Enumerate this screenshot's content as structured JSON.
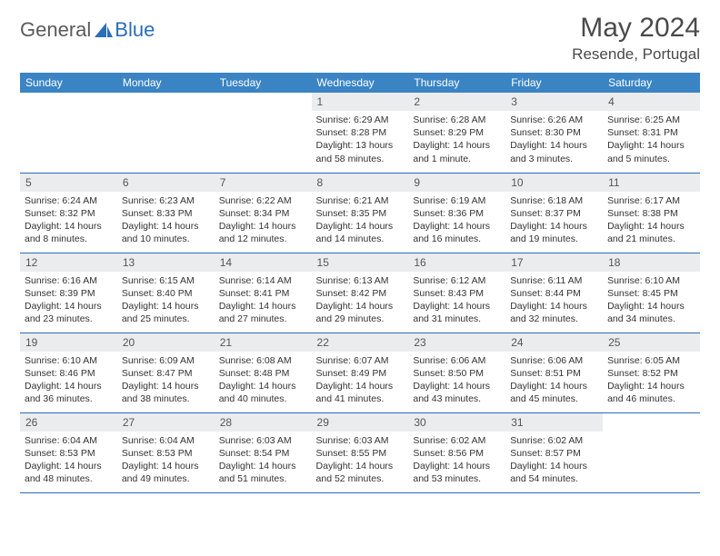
{
  "brand": {
    "general": "General",
    "blue": "Blue"
  },
  "title": "May 2024",
  "location": "Resende, Portugal",
  "colors": {
    "header_bg": "#3b84c4",
    "accent": "#2a6db8",
    "daynum_bg": "#ebeced",
    "text": "#333333"
  },
  "weekdays": [
    "Sunday",
    "Monday",
    "Tuesday",
    "Wednesday",
    "Thursday",
    "Friday",
    "Saturday"
  ],
  "weeks": [
    [
      null,
      null,
      null,
      {
        "n": "1",
        "sr": "6:29 AM",
        "ss": "8:28 PM",
        "dl": "13 hours and 58 minutes."
      },
      {
        "n": "2",
        "sr": "6:28 AM",
        "ss": "8:29 PM",
        "dl": "14 hours and 1 minute."
      },
      {
        "n": "3",
        "sr": "6:26 AM",
        "ss": "8:30 PM",
        "dl": "14 hours and 3 minutes."
      },
      {
        "n": "4",
        "sr": "6:25 AM",
        "ss": "8:31 PM",
        "dl": "14 hours and 5 minutes."
      }
    ],
    [
      {
        "n": "5",
        "sr": "6:24 AM",
        "ss": "8:32 PM",
        "dl": "14 hours and 8 minutes."
      },
      {
        "n": "6",
        "sr": "6:23 AM",
        "ss": "8:33 PM",
        "dl": "14 hours and 10 minutes."
      },
      {
        "n": "7",
        "sr": "6:22 AM",
        "ss": "8:34 PM",
        "dl": "14 hours and 12 minutes."
      },
      {
        "n": "8",
        "sr": "6:21 AM",
        "ss": "8:35 PM",
        "dl": "14 hours and 14 minutes."
      },
      {
        "n": "9",
        "sr": "6:19 AM",
        "ss": "8:36 PM",
        "dl": "14 hours and 16 minutes."
      },
      {
        "n": "10",
        "sr": "6:18 AM",
        "ss": "8:37 PM",
        "dl": "14 hours and 19 minutes."
      },
      {
        "n": "11",
        "sr": "6:17 AM",
        "ss": "8:38 PM",
        "dl": "14 hours and 21 minutes."
      }
    ],
    [
      {
        "n": "12",
        "sr": "6:16 AM",
        "ss": "8:39 PM",
        "dl": "14 hours and 23 minutes."
      },
      {
        "n": "13",
        "sr": "6:15 AM",
        "ss": "8:40 PM",
        "dl": "14 hours and 25 minutes."
      },
      {
        "n": "14",
        "sr": "6:14 AM",
        "ss": "8:41 PM",
        "dl": "14 hours and 27 minutes."
      },
      {
        "n": "15",
        "sr": "6:13 AM",
        "ss": "8:42 PM",
        "dl": "14 hours and 29 minutes."
      },
      {
        "n": "16",
        "sr": "6:12 AM",
        "ss": "8:43 PM",
        "dl": "14 hours and 31 minutes."
      },
      {
        "n": "17",
        "sr": "6:11 AM",
        "ss": "8:44 PM",
        "dl": "14 hours and 32 minutes."
      },
      {
        "n": "18",
        "sr": "6:10 AM",
        "ss": "8:45 PM",
        "dl": "14 hours and 34 minutes."
      }
    ],
    [
      {
        "n": "19",
        "sr": "6:10 AM",
        "ss": "8:46 PM",
        "dl": "14 hours and 36 minutes."
      },
      {
        "n": "20",
        "sr": "6:09 AM",
        "ss": "8:47 PM",
        "dl": "14 hours and 38 minutes."
      },
      {
        "n": "21",
        "sr": "6:08 AM",
        "ss": "8:48 PM",
        "dl": "14 hours and 40 minutes."
      },
      {
        "n": "22",
        "sr": "6:07 AM",
        "ss": "8:49 PM",
        "dl": "14 hours and 41 minutes."
      },
      {
        "n": "23",
        "sr": "6:06 AM",
        "ss": "8:50 PM",
        "dl": "14 hours and 43 minutes."
      },
      {
        "n": "24",
        "sr": "6:06 AM",
        "ss": "8:51 PM",
        "dl": "14 hours and 45 minutes."
      },
      {
        "n": "25",
        "sr": "6:05 AM",
        "ss": "8:52 PM",
        "dl": "14 hours and 46 minutes."
      }
    ],
    [
      {
        "n": "26",
        "sr": "6:04 AM",
        "ss": "8:53 PM",
        "dl": "14 hours and 48 minutes."
      },
      {
        "n": "27",
        "sr": "6:04 AM",
        "ss": "8:53 PM",
        "dl": "14 hours and 49 minutes."
      },
      {
        "n": "28",
        "sr": "6:03 AM",
        "ss": "8:54 PM",
        "dl": "14 hours and 51 minutes."
      },
      {
        "n": "29",
        "sr": "6:03 AM",
        "ss": "8:55 PM",
        "dl": "14 hours and 52 minutes."
      },
      {
        "n": "30",
        "sr": "6:02 AM",
        "ss": "8:56 PM",
        "dl": "14 hours and 53 minutes."
      },
      {
        "n": "31",
        "sr": "6:02 AM",
        "ss": "8:57 PM",
        "dl": "14 hours and 54 minutes."
      },
      null
    ]
  ],
  "labels": {
    "sunrise": "Sunrise:",
    "sunset": "Sunset:",
    "daylight": "Daylight:"
  }
}
